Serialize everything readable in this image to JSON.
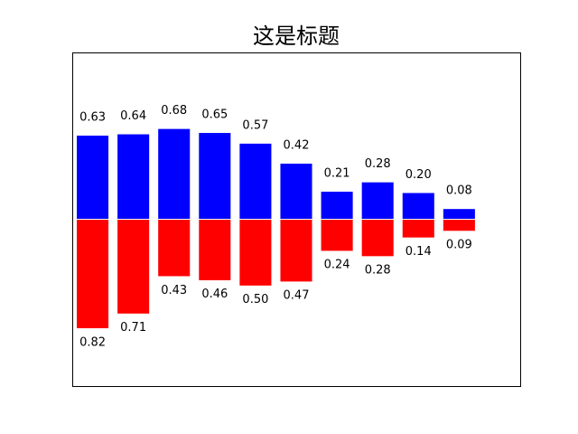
{
  "chart_data": {
    "type": "bar",
    "title": "这是标题",
    "xlabel": "",
    "ylabel": "",
    "xlim": [
      -0.5,
      10.5
    ],
    "ylim": [
      -1.25,
      1.25
    ],
    "axis_ticks": false,
    "grid": false,
    "x": [
      0,
      1,
      2,
      3,
      4,
      5,
      6,
      7,
      8,
      9
    ],
    "series": [
      {
        "color": "#0000ff",
        "values": [
          0.63,
          0.64,
          0.68,
          0.65,
          0.57,
          0.42,
          0.21,
          0.28,
          0.2,
          0.08
        ],
        "labels": [
          "0.63",
          "0.64",
          "0.68",
          "0.65",
          "0.57",
          "0.42",
          "0.21",
          "0.28",
          "0.20",
          "0.08"
        ]
      },
      {
        "color": "#ff0000",
        "values": [
          -0.82,
          -0.71,
          -0.43,
          -0.46,
          -0.5,
          -0.47,
          -0.24,
          -0.28,
          -0.14,
          -0.09
        ],
        "labels": [
          "0.82",
          "0.71",
          "0.43",
          "0.46",
          "0.50",
          "0.47",
          "0.24",
          "0.28",
          "0.14",
          "0.09"
        ]
      }
    ]
  }
}
